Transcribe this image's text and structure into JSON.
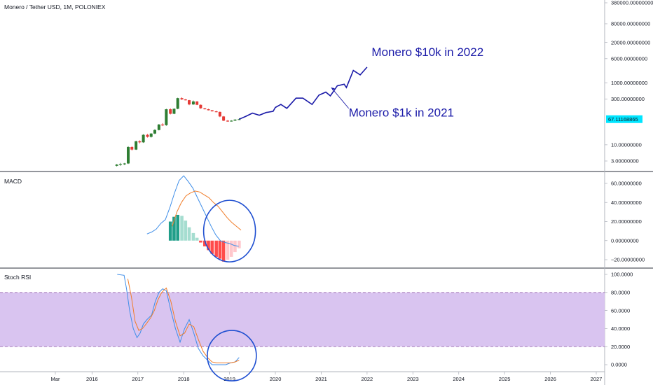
{
  "header": {
    "title": "Monero / Tether USD, 1M, POLONIEX"
  },
  "colors": {
    "up": "#2e7d32",
    "down": "#e53935",
    "projection": "#1a1aa8",
    "macd_line": "#3f8ee8",
    "signal_line": "#f07d2a",
    "hist_up_strong": "#1f9e89",
    "hist_up_weak": "#a5ddd0",
    "hist_down_strong": "#ff4b4b",
    "hist_down_weak": "#ffc7cc",
    "rsi_band": "#d9c4f0",
    "rsi_k": "#3f8ee8",
    "rsi_d": "#f07d2a",
    "circle": "#1f4fd1",
    "price_label_bg": "#00e5ff"
  },
  "chart_data": [
    {
      "type": "candlestick",
      "title": "Monero / Tether USD, 1M, POLONIEX",
      "scale": "log",
      "ylim": [
        2,
        400000
      ],
      "y_ticks": [
        "380000.00000000",
        "80000.00000000",
        "20000.00000000",
        "6000.00000000",
        "1000.00000000",
        "300.00000000",
        "10.00000000",
        "3.00000000"
      ],
      "y_tick_values": [
        380000,
        80000,
        20000,
        6000,
        1000,
        300,
        10,
        3
      ],
      "last_price_label": "67.11168865",
      "last_price": 67.11,
      "candles": [
        {
          "t": 2016.54,
          "o": 2.1,
          "h": 2.4,
          "l": 2.0,
          "c": 2.3
        },
        {
          "t": 2016.62,
          "o": 2.3,
          "h": 2.6,
          "l": 2.1,
          "c": 2.4
        },
        {
          "t": 2016.71,
          "o": 2.4,
          "h": 2.6,
          "l": 2.2,
          "c": 2.5
        },
        {
          "t": 2016.79,
          "o": 2.5,
          "h": 9.0,
          "l": 2.4,
          "c": 8.5
        },
        {
          "t": 2016.87,
          "o": 8.5,
          "h": 9.0,
          "l": 6.5,
          "c": 7.0
        },
        {
          "t": 2016.96,
          "o": 7.0,
          "h": 13.5,
          "l": 6.8,
          "c": 13.0
        },
        {
          "t": 2017.04,
          "o": 13.0,
          "h": 14.0,
          "l": 11.0,
          "c": 12.0
        },
        {
          "t": 2017.12,
          "o": 12.0,
          "h": 22.0,
          "l": 11.5,
          "c": 21.0
        },
        {
          "t": 2017.21,
          "o": 21.0,
          "h": 22.5,
          "l": 17.0,
          "c": 18.0
        },
        {
          "t": 2017.29,
          "o": 18.0,
          "h": 24.0,
          "l": 17.0,
          "c": 23.0
        },
        {
          "t": 2017.37,
          "o": 23.0,
          "h": 32.0,
          "l": 22.0,
          "c": 30.0
        },
        {
          "t": 2017.46,
          "o": 30.0,
          "h": 47.0,
          "l": 29.0,
          "c": 45.0
        },
        {
          "t": 2017.54,
          "o": 45.0,
          "h": 50.0,
          "l": 40.0,
          "c": 43.0
        },
        {
          "t": 2017.62,
          "o": 43.0,
          "h": 145.0,
          "l": 41.0,
          "c": 140.0
        },
        {
          "t": 2017.71,
          "o": 140.0,
          "h": 150.0,
          "l": 95.0,
          "c": 100.0
        },
        {
          "t": 2017.79,
          "o": 100.0,
          "h": 150.0,
          "l": 97.0,
          "c": 145.0
        },
        {
          "t": 2017.87,
          "o": 145.0,
          "h": 330.0,
          "l": 140.0,
          "c": 320.0
        },
        {
          "t": 2017.96,
          "o": 320.0,
          "h": 340.0,
          "l": 280.0,
          "c": 290.0
        },
        {
          "t": 2018.04,
          "o": 290.0,
          "h": 300.0,
          "l": 270.0,
          "c": 275.0
        },
        {
          "t": 2018.12,
          "o": 275.0,
          "h": 280.0,
          "l": 190.0,
          "c": 200.0
        },
        {
          "t": 2018.21,
          "o": 200.0,
          "h": 270.0,
          "l": 195.0,
          "c": 250.0
        },
        {
          "t": 2018.29,
          "o": 250.0,
          "h": 255.0,
          "l": 190.0,
          "c": 195.0
        },
        {
          "t": 2018.37,
          "o": 195.0,
          "h": 200.0,
          "l": 145.0,
          "c": 150.0
        },
        {
          "t": 2018.46,
          "o": 150.0,
          "h": 155.0,
          "l": 138.0,
          "c": 140.0
        },
        {
          "t": 2018.54,
          "o": 140.0,
          "h": 145.0,
          "l": 128.0,
          "c": 130.0
        },
        {
          "t": 2018.62,
          "o": 130.0,
          "h": 132.0,
          "l": 118.0,
          "c": 120.0
        },
        {
          "t": 2018.71,
          "o": 120.0,
          "h": 125.0,
          "l": 112.0,
          "c": 115.0
        },
        {
          "t": 2018.79,
          "o": 115.0,
          "h": 118.0,
          "l": 78.0,
          "c": 82.0
        },
        {
          "t": 2018.87,
          "o": 82.0,
          "h": 85.0,
          "l": 58.0,
          "c": 60.0
        },
        {
          "t": 2018.96,
          "o": 60.0,
          "h": 63.0,
          "l": 55.0,
          "c": 58.0
        },
        {
          "t": 2019.04,
          "o": 58.0,
          "h": 62.0,
          "l": 56.0,
          "c": 60.0
        },
        {
          "t": 2019.12,
          "o": 60.0,
          "h": 67.0,
          "l": 59.0,
          "c": 65.0
        },
        {
          "t": 2019.21,
          "o": 65.0,
          "h": 72.0,
          "l": 63.0,
          "c": 67.1
        }
      ],
      "projection": {
        "x": [
          2019.21,
          2019.35,
          2019.5,
          2019.65,
          2019.8,
          2019.95,
          2020.0,
          2020.12,
          2020.25,
          2020.45,
          2020.6,
          2020.8,
          2020.95,
          2021.1,
          2021.2,
          2021.35,
          2021.5,
          2021.55,
          2021.7,
          2021.85,
          2022.0
        ],
        "y": [
          67,
          82,
          105,
          90,
          110,
          120,
          160,
          200,
          150,
          320,
          320,
          200,
          400,
          500,
          380,
          800,
          900,
          700,
          2500,
          1800,
          3200
        ]
      },
      "annotations": [
        {
          "text": "Monero $10k in 2022",
          "x": 2022.1,
          "y": 10000
        },
        {
          "text": "Monero $1k in 2021",
          "x": 2021.6,
          "y": 110
        }
      ]
    },
    {
      "type": "line+bar",
      "title": "MACD",
      "ylim": [
        -28,
        70
      ],
      "y_ticks": [
        "60.00000000",
        "40.00000000",
        "20.00000000",
        "0.00000000",
        "−20.00000000"
      ],
      "y_tick_values": [
        60,
        40,
        20,
        0,
        -20
      ],
      "histogram": {
        "x": [
          2017.71,
          2017.79,
          2017.87,
          2017.96,
          2018.04,
          2018.12,
          2018.21,
          2018.29,
          2018.37,
          2018.46,
          2018.54,
          2018.62,
          2018.71,
          2018.79,
          2018.87,
          2018.96,
          2019.04,
          2019.12,
          2019.21
        ],
        "values": [
          20,
          25,
          27,
          26,
          21,
          14,
          8,
          3,
          -2,
          -6,
          -10,
          -14,
          -17,
          -19,
          -22,
          -20,
          -17,
          -12,
          -8
        ]
      },
      "macd_line": {
        "x": [
          2017.2,
          2017.3,
          2017.4,
          2017.5,
          2017.6,
          2017.7,
          2017.8,
          2017.9,
          2018.0,
          2018.1,
          2018.2,
          2018.3,
          2018.4,
          2018.5,
          2018.6,
          2018.7,
          2018.8,
          2018.9,
          2019.0,
          2019.1,
          2019.2
        ],
        "y": [
          7,
          9,
          12,
          18,
          22,
          35,
          50,
          63,
          68,
          62,
          55,
          45,
          35,
          25,
          15,
          6,
          0,
          -2,
          -3,
          -5,
          -6
        ]
      },
      "signal_line": {
        "x": [
          2017.75,
          2017.85,
          2017.95,
          2018.05,
          2018.15,
          2018.25,
          2018.35,
          2018.45,
          2018.55,
          2018.65,
          2018.75,
          2018.85,
          2018.95,
          2019.05,
          2019.15,
          2019.25
        ],
        "y": [
          15,
          30,
          40,
          47,
          50,
          52,
          51,
          48,
          45,
          40,
          36,
          30,
          24,
          19,
          15,
          11
        ]
      }
    },
    {
      "type": "line",
      "title": "Stoch RSI",
      "ylim": [
        -5,
        103
      ],
      "y_ticks": [
        "100.0000",
        "80.0000",
        "60.0000",
        "40.0000",
        "20.0000",
        "0.0000"
      ],
      "y_tick_values": [
        100,
        80,
        60,
        40,
        20,
        0
      ],
      "band": [
        20,
        80
      ],
      "k_line": {
        "x": [
          2016.55,
          2016.7,
          2016.75,
          2016.82,
          2016.9,
          2016.98,
          2017.05,
          2017.12,
          2017.2,
          2017.3,
          2017.38,
          2017.46,
          2017.54,
          2017.62,
          2017.72,
          2017.82,
          2017.92,
          2018.02,
          2018.12,
          2018.22,
          2018.32,
          2018.42,
          2018.52,
          2018.62,
          2018.72,
          2018.82,
          2018.92,
          2019.02,
          2019.12,
          2019.21
        ],
        "y": [
          100,
          99,
          85,
          60,
          40,
          30,
          35,
          45,
          50,
          55,
          70,
          80,
          84,
          82,
          60,
          40,
          25,
          40,
          50,
          35,
          18,
          10,
          5,
          0,
          0,
          0,
          0,
          2,
          3,
          8
        ]
      },
      "d_line": {
        "x": [
          2016.78,
          2016.86,
          2016.94,
          2017.02,
          2017.1,
          2017.18,
          2017.28,
          2017.36,
          2017.44,
          2017.52,
          2017.62,
          2017.72,
          2017.82,
          2017.92,
          2018.02,
          2018.12,
          2018.22,
          2018.32,
          2018.42,
          2018.52,
          2018.62,
          2018.72,
          2018.82,
          2018.92,
          2019.02,
          2019.12,
          2019.21
        ],
        "y": [
          95,
          75,
          48,
          38,
          40,
          45,
          52,
          60,
          72,
          80,
          85,
          70,
          48,
          32,
          35,
          45,
          42,
          28,
          15,
          8,
          3,
          2,
          2,
          2,
          2,
          3,
          5
        ]
      }
    }
  ],
  "x_axis": {
    "ticks": [
      {
        "label": "Mar",
        "t": 2015.2
      },
      {
        "label": "2016",
        "t": 2016.0
      },
      {
        "label": "2017",
        "t": 2017.0
      },
      {
        "label": "2018",
        "t": 2018.0
      },
      {
        "label": "2019",
        "t": 2019.0
      },
      {
        "label": "2020",
        "t": 2020.0
      },
      {
        "label": "2021",
        "t": 2021.0
      },
      {
        "label": "2022",
        "t": 2022.0
      },
      {
        "label": "2023",
        "t": 2023.0
      },
      {
        "label": "2024",
        "t": 2024.0
      },
      {
        "label": "2025",
        "t": 2025.0
      },
      {
        "label": "2026",
        "t": 2026.0
      },
      {
        "label": "2027",
        "t": 2027.0
      }
    ]
  }
}
